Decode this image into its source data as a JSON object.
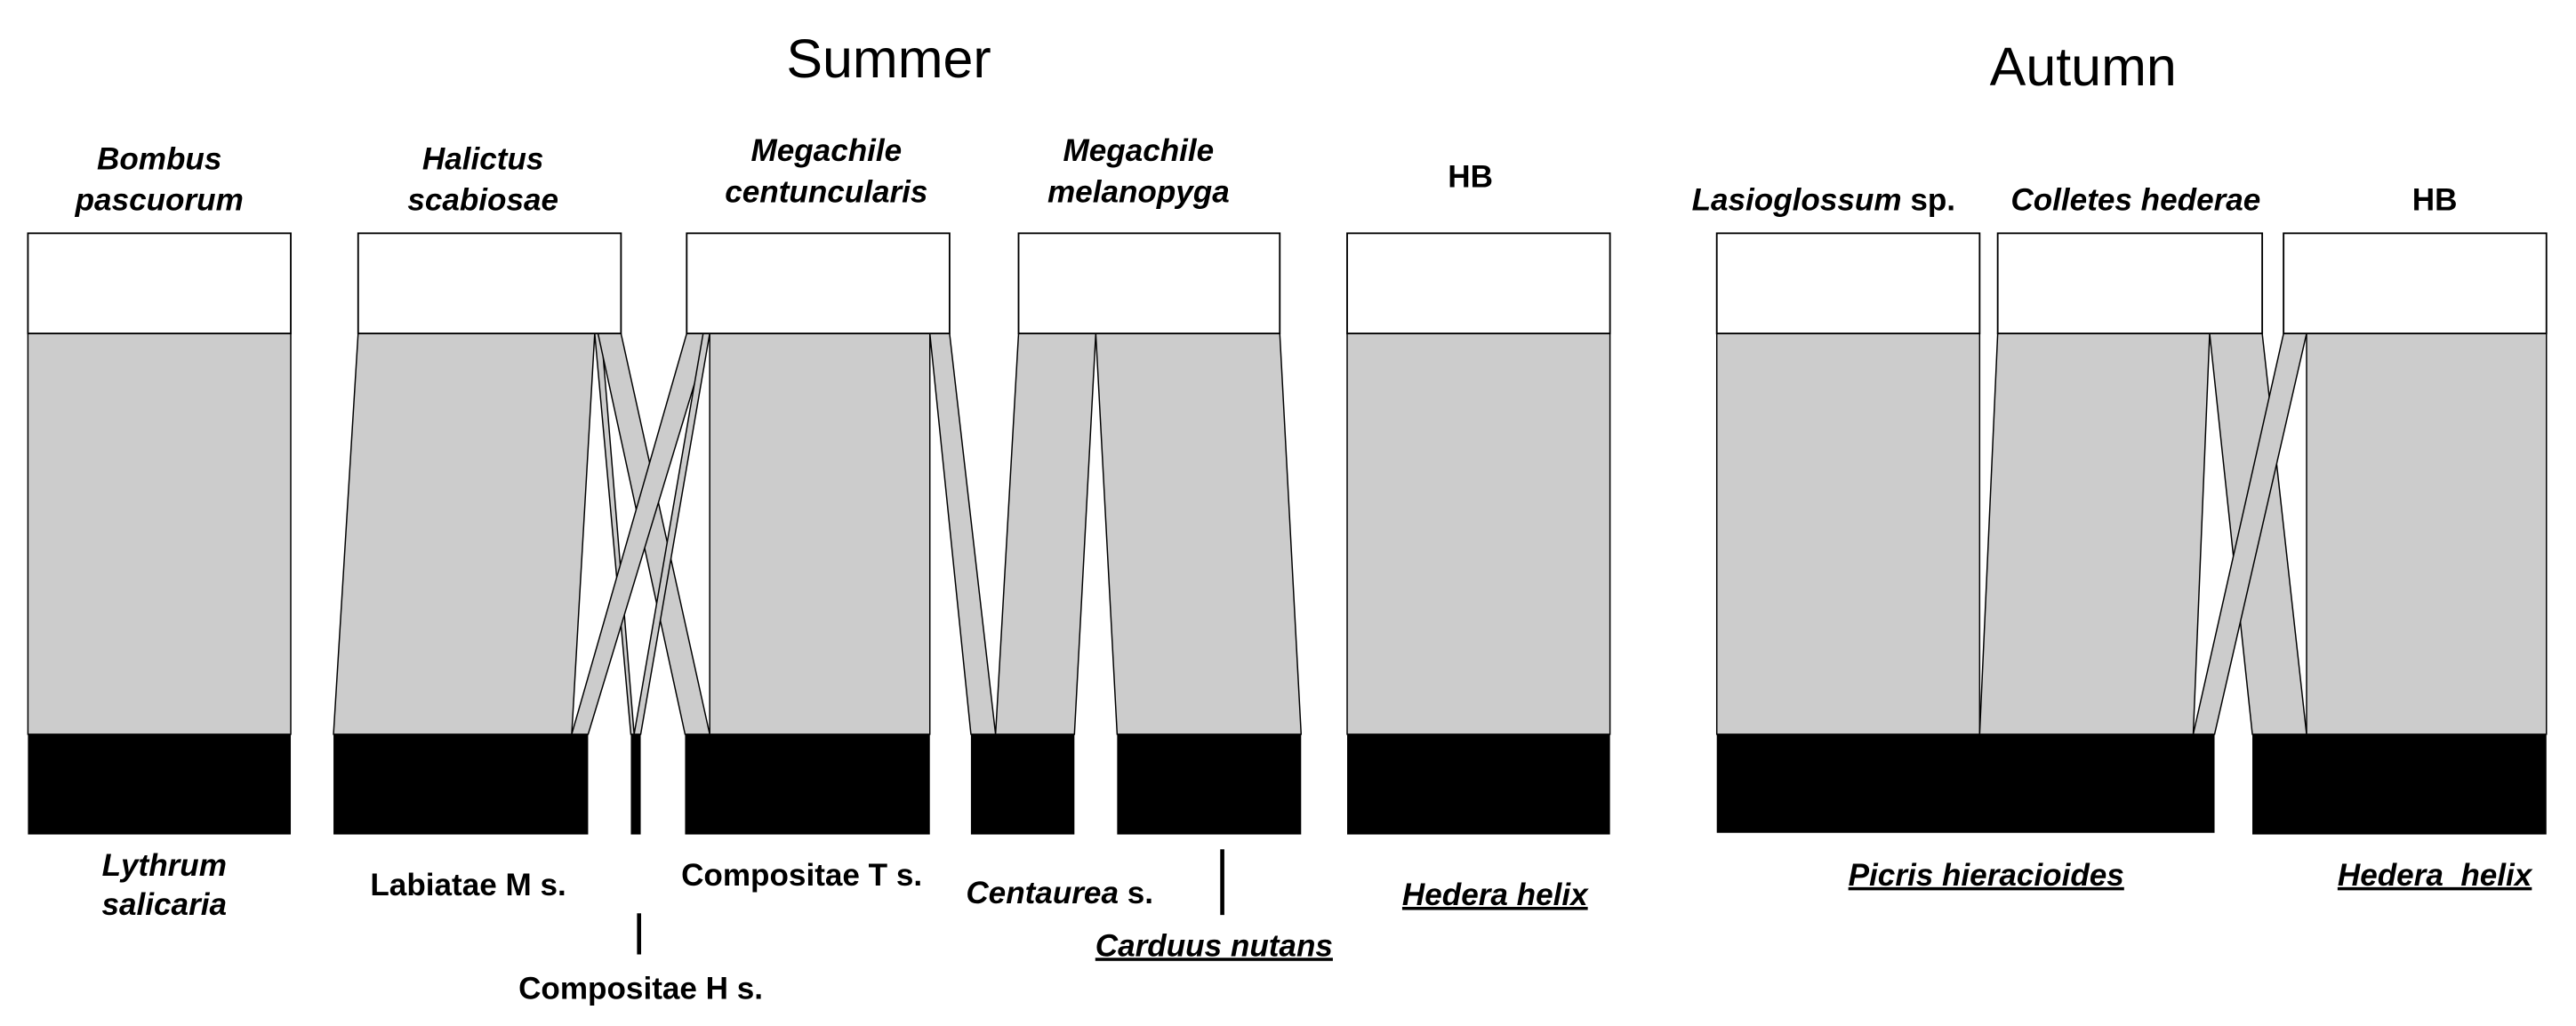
{
  "titles": [
    "Summer",
    "Autumn"
  ],
  "pollinators": [
    {
      "lines": [
        "Bombus",
        "pascuorum"
      ]
    },
    {
      "lines": [
        "Halictus",
        "scabiosae"
      ]
    },
    {
      "lines": [
        "Megachile",
        "centuncularis"
      ]
    },
    {
      "lines": [
        "Megachile",
        "melanopyga"
      ]
    },
    {
      "lines": [
        "HB"
      ]
    },
    {
      "lines": [
        "Lasioglossum",
        "sp."
      ]
    },
    {
      "lines": [
        "Colletes hederae"
      ]
    },
    {
      "lines": [
        "HB"
      ]
    }
  ],
  "plants": [
    {
      "lines": [
        "Lythrum",
        "salicaria"
      ]
    },
    {
      "lines": [
        "Labiatae M s."
      ]
    },
    {
      "lines": [
        "Compositae H s."
      ]
    },
    {
      "lines": [
        "Compositae T s."
      ]
    },
    {
      "lines": [
        "Centaurea",
        "s."
      ]
    },
    {
      "lines": [
        "Carduus nutans"
      ]
    },
    {
      "lines": [
        "Hedera helix"
      ]
    },
    {
      "lines": [
        "Picris hieracioides"
      ]
    },
    {
      "lines": [
        "Hedera  helix"
      ]
    }
  ]
}
